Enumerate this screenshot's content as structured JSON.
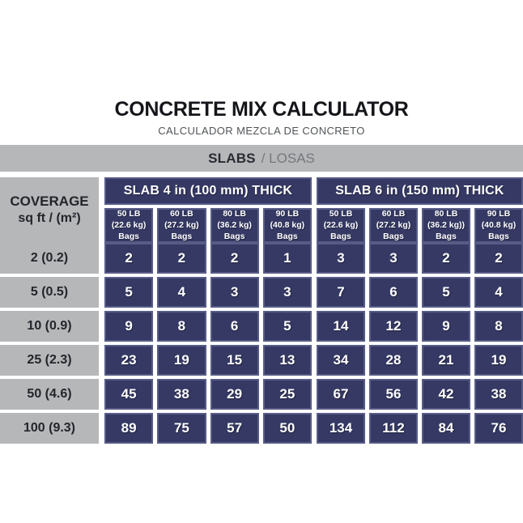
{
  "header": {
    "title": "CONCRETE MIX CALCULATOR",
    "subtitle": "CALCULADOR MEZCLA DE CONCRETO"
  },
  "banner": {
    "primary": "SLABS",
    "secondary": "/ LOSAS"
  },
  "table": {
    "coverage": {
      "line1": "COVERAGE",
      "line2": "sq ft / (m²)"
    },
    "groups": [
      {
        "label": "SLAB 4 in (100 mm) THICK",
        "columns": [
          {
            "weight": "50 LB",
            "metric": "(22.6 kg)",
            "unit": "Bags"
          },
          {
            "weight": "60 LB",
            "metric": "(27.2 kg)",
            "unit": "Bags"
          },
          {
            "weight": "80 LB",
            "metric": "(36.2 kg)",
            "unit": "Bags"
          },
          {
            "weight": "90 LB",
            "metric": "(40.8 kg)",
            "unit": "Bags"
          }
        ]
      },
      {
        "label": "SLAB 6 in (150 mm) THICK",
        "columns": [
          {
            "weight": "50 LB",
            "metric": "(22.6 kg)",
            "unit": "Bags"
          },
          {
            "weight": "60 LB",
            "metric": "(27.2 kg)",
            "unit": "Bags"
          },
          {
            "weight": "80 LB",
            "metric": "(36.2 kg))",
            "unit": "Bags"
          },
          {
            "weight": "90 LB",
            "metric": "(40.8 kg)",
            "unit": "Bags"
          }
        ]
      }
    ],
    "rows": [
      {
        "coverage": "2 (0.2)",
        "values": [
          "2",
          "2",
          "2",
          "1",
          "3",
          "3",
          "2",
          "2"
        ]
      },
      {
        "coverage": "5 (0.5)",
        "values": [
          "5",
          "4",
          "3",
          "3",
          "7",
          "6",
          "5",
          "4"
        ]
      },
      {
        "coverage": "10 (0.9)",
        "values": [
          "9",
          "8",
          "6",
          "5",
          "14",
          "12",
          "9",
          "8"
        ]
      },
      {
        "coverage": "25 (2.3)",
        "values": [
          "23",
          "19",
          "15",
          "13",
          "34",
          "28",
          "21",
          "19"
        ]
      },
      {
        "coverage": "50 (4.6)",
        "values": [
          "45",
          "38",
          "29",
          "25",
          "67",
          "56",
          "42",
          "38"
        ]
      },
      {
        "coverage": "100 (9.3)",
        "values": [
          "89",
          "75",
          "57",
          "50",
          "134",
          "112",
          "84",
          "76"
        ]
      }
    ]
  },
  "colors": {
    "navy_fill": "#353964",
    "navy_border": "#575c87",
    "gray": "#b5b7b9",
    "title_text": "#15161a",
    "subtitle_text": "#515457",
    "banner_secondary_text": "#75797d",
    "cell_text": "#ffffff"
  },
  "chart_data": {
    "type": "table",
    "title": "CONCRETE MIX CALCULATOR",
    "subtitle": "CALCULADOR MEZCLA DE CONCRETO",
    "section": "SLABS / LOSAS",
    "row_header": "COVERAGE sq ft / (m²)",
    "column_groups": [
      "SLAB 4 in (100 mm) THICK",
      "SLAB 6 in (150 mm) THICK"
    ],
    "bag_sizes": [
      "50 LB (22.6 kg) Bags",
      "60 LB (27.2 kg) Bags",
      "80 LB (36.2 kg) Bags",
      "90 LB (40.8 kg) Bags"
    ],
    "coverage_sq_ft_m2": [
      "2 (0.2)",
      "5 (0.5)",
      "10 (0.9)",
      "25 (2.3)",
      "50 (4.6)",
      "100 (9.3)"
    ],
    "slab_4in_100mm_bags": [
      [
        2,
        2,
        2,
        1
      ],
      [
        5,
        4,
        3,
        3
      ],
      [
        9,
        8,
        6,
        5
      ],
      [
        23,
        19,
        15,
        13
      ],
      [
        45,
        38,
        29,
        25
      ],
      [
        89,
        75,
        57,
        50
      ]
    ],
    "slab_6in_150mm_bags": [
      [
        3,
        3,
        2,
        2
      ],
      [
        7,
        6,
        5,
        4
      ],
      [
        14,
        12,
        9,
        8
      ],
      [
        34,
        28,
        21,
        19
      ],
      [
        67,
        56,
        42,
        38
      ],
      [
        134,
        112,
        84,
        76
      ]
    ]
  }
}
